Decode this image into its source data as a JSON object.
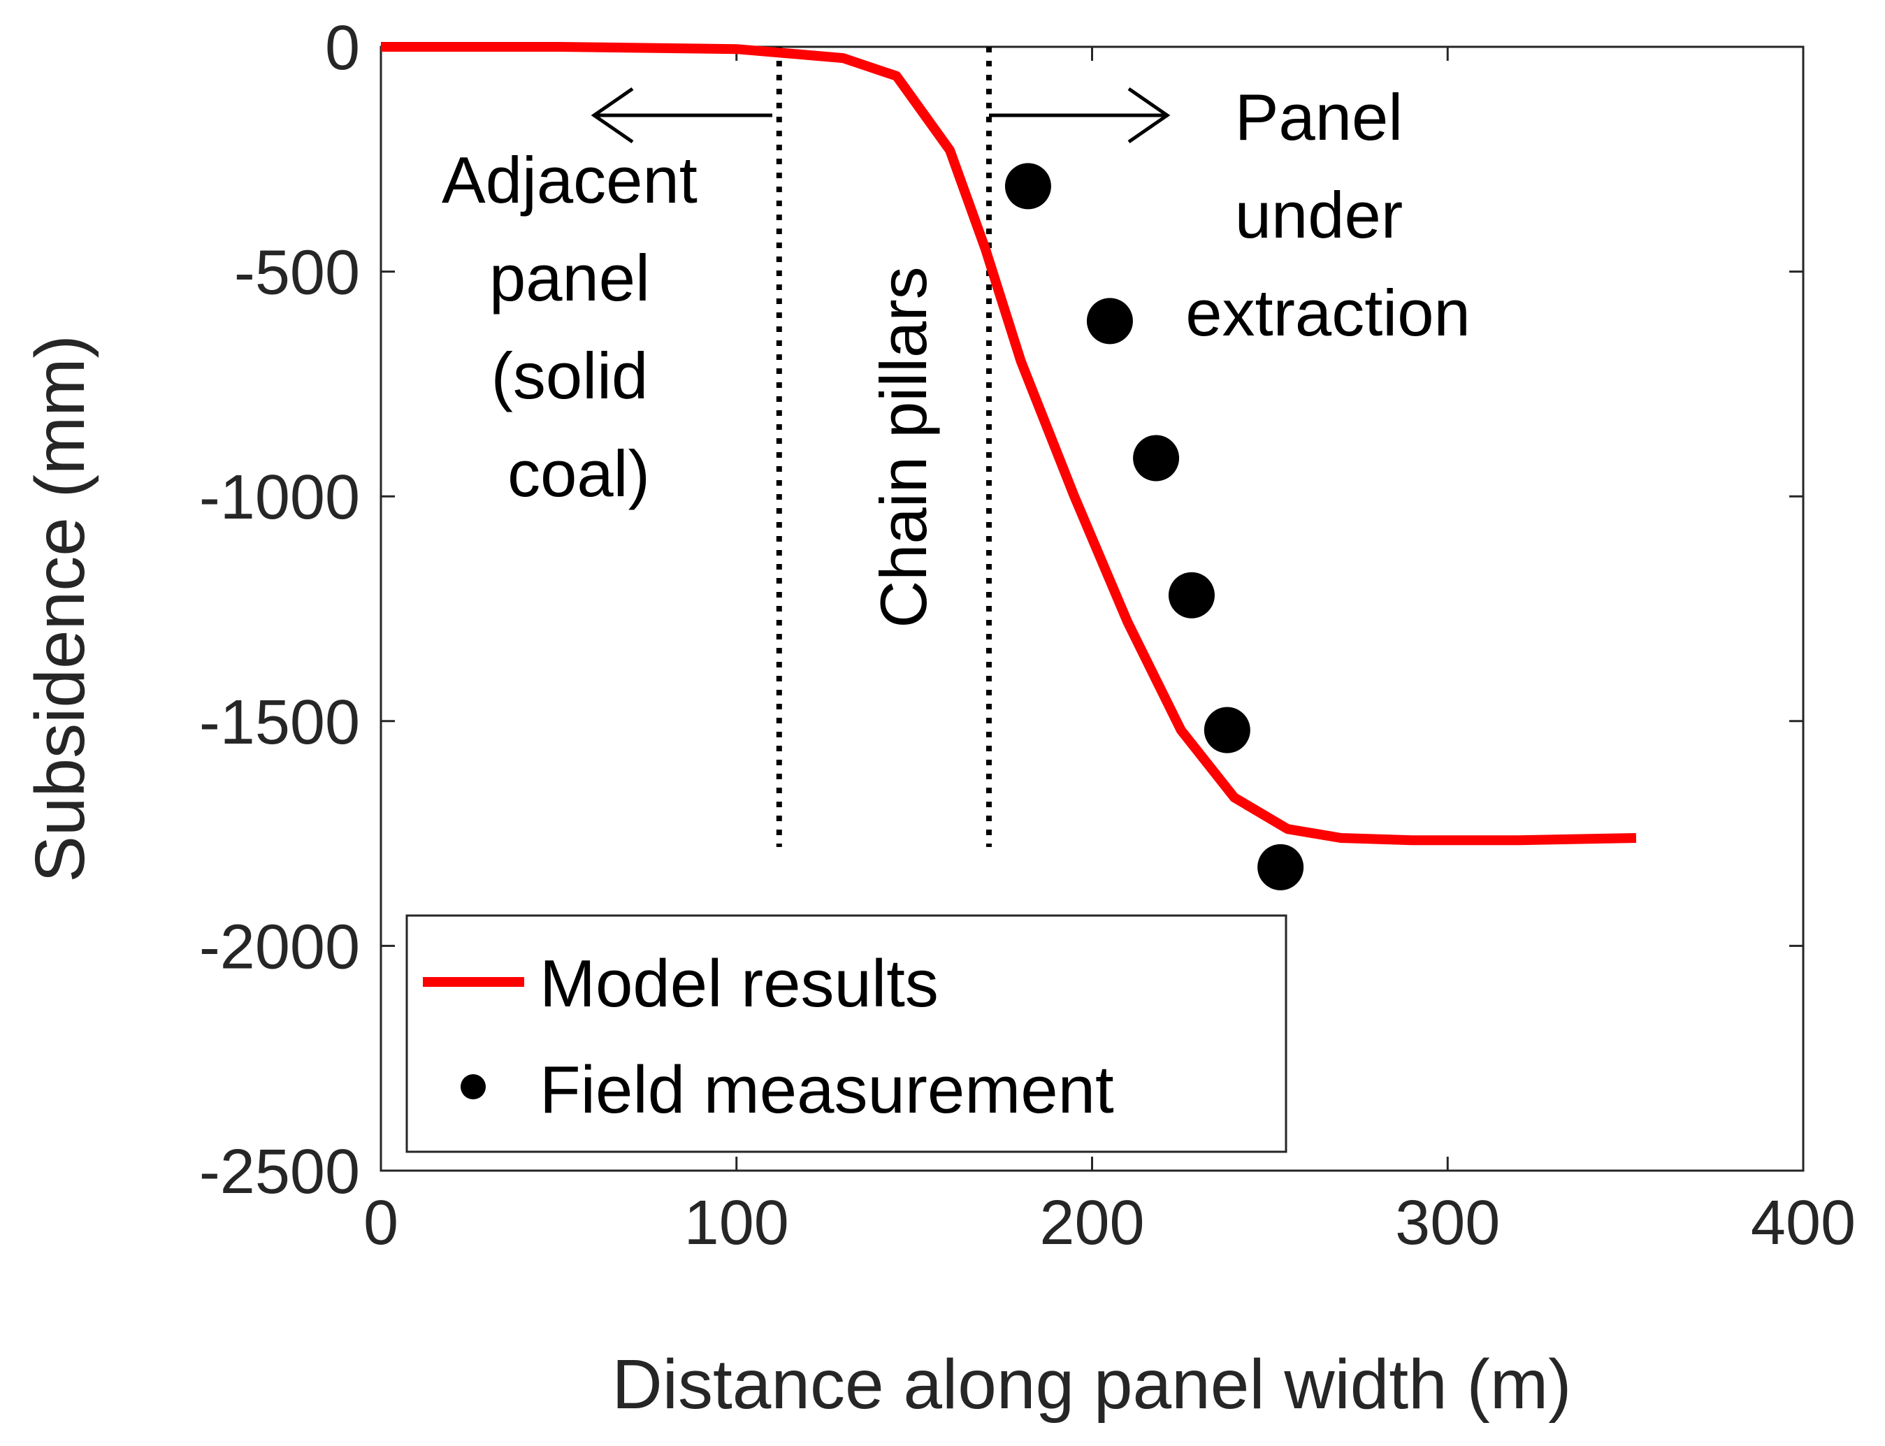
{
  "chart_data": {
    "type": "line",
    "title": "",
    "xlabel": "Distance along panel width (m)",
    "ylabel": "Subsidence (mm)",
    "xlim": [
      0,
      400
    ],
    "ylim": [
      -2500,
      0
    ],
    "xticks": [
      0,
      100,
      200,
      300,
      400
    ],
    "yticks": [
      0,
      -500,
      -1000,
      -1500,
      -2000,
      -2500
    ],
    "xtick_labels": [
      "0",
      "100",
      "200",
      "300",
      "400"
    ],
    "ytick_labels": [
      "0",
      "-500",
      "-1000",
      "-1500",
      "-2000",
      "-2500"
    ],
    "grid": false,
    "legend_position": "bottom-left",
    "series": [
      {
        "name": "Model results",
        "type": "line",
        "color": "#ff0000",
        "x": [
          0,
          50,
          100,
          115,
          130,
          145,
          160,
          170,
          180,
          195,
          210,
          225,
          240,
          255,
          270,
          290,
          320,
          353
        ],
        "y": [
          0,
          0,
          -5,
          -15,
          -25,
          -65,
          -230,
          -450,
          -700,
          -1000,
          -1280,
          -1520,
          -1670,
          -1740,
          -1760,
          -1765,
          -1765,
          -1760
        ]
      },
      {
        "name": "Field measurement",
        "type": "scatter",
        "color": "#000000",
        "x": [
          182,
          205,
          218,
          228,
          238,
          253
        ],
        "y": [
          -310,
          -610,
          -915,
          -1220,
          -1520,
          -1825
        ]
      }
    ],
    "vertical_lines": [
      {
        "x": 112,
        "y_range": [
          0,
          -1780
        ],
        "style": "dotted"
      },
      {
        "x": 171,
        "y_range": [
          0,
          -1780
        ],
        "style": "dotted"
      }
    ],
    "annotations": [
      {
        "text_lines": [
          "Adjacent",
          "panel",
          "(solid",
          "coal)"
        ],
        "arrow": "left"
      },
      {
        "text_lines": [
          "Chain pillars"
        ],
        "rotated": true
      },
      {
        "text_lines": [
          "Panel",
          "under",
          "extraction"
        ],
        "arrow": "right"
      }
    ]
  }
}
